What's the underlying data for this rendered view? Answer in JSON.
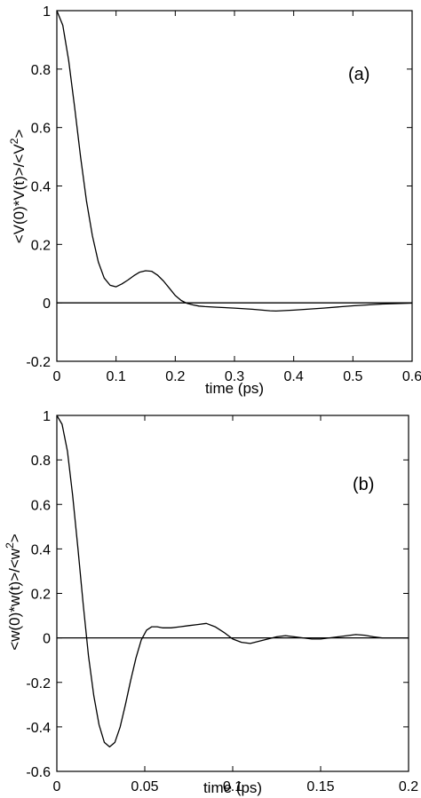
{
  "chart_data": [
    {
      "type": "line",
      "panel_tag": "(a)",
      "xlabel": "time (ps)",
      "ylabel": "<V(0)*V(t)>/<V",
      "ylabel_sup": "2",
      "ylabel_tail": ">",
      "xlim": [
        0,
        0.6
      ],
      "ylim": [
        -0.2,
        1
      ],
      "xticks": [
        0,
        0.1,
        0.2,
        0.3,
        0.4,
        0.5,
        0.6
      ],
      "xtick_labels": [
        "0",
        "0.1",
        "0.2",
        "0.3",
        "0.4",
        "0.5",
        "0.6"
      ],
      "yticks": [
        -0.2,
        0,
        0.2,
        0.4,
        0.6,
        0.8,
        1
      ],
      "ytick_labels": [
        "-0.2",
        "0",
        "0.2",
        "0.4",
        "0.6",
        "0.8",
        "1"
      ],
      "zero_line": 0,
      "series": [
        {
          "x": [
            0,
            0.01,
            0.02,
            0.03,
            0.04,
            0.05,
            0.06,
            0.07,
            0.08,
            0.09,
            0.1,
            0.11,
            0.12,
            0.13,
            0.14,
            0.15,
            0.16,
            0.17,
            0.18,
            0.19,
            0.2,
            0.21,
            0.22,
            0.23,
            0.24,
            0.25,
            0.27,
            0.3,
            0.33,
            0.36,
            0.37,
            0.4,
            0.45,
            0.5,
            0.55,
            0.6
          ],
          "y": [
            1,
            0.95,
            0.83,
            0.67,
            0.5,
            0.35,
            0.23,
            0.14,
            0.085,
            0.06,
            0.055,
            0.065,
            0.078,
            0.093,
            0.105,
            0.11,
            0.108,
            0.095,
            0.075,
            0.05,
            0.025,
            0.008,
            -0.002,
            -0.007,
            -0.011,
            -0.013,
            -0.015,
            -0.018,
            -0.022,
            -0.027,
            -0.028,
            -0.025,
            -0.018,
            -0.01,
            -0.004,
            -0.001
          ]
        }
      ]
    },
    {
      "type": "line",
      "panel_tag": "(b)",
      "xlabel": "time (ps)",
      "ylabel": "<w(0)*w(t)>/<w",
      "ylabel_sup": "2",
      "ylabel_tail": ">",
      "xlim": [
        0,
        0.2
      ],
      "ylim": [
        -0.6,
        1
      ],
      "xticks": [
        0,
        0.05,
        0.1,
        0.15,
        0.2
      ],
      "xtick_labels": [
        "0",
        "0.05",
        "0.1",
        "0.15",
        "0.2"
      ],
      "yticks": [
        -0.6,
        -0.4,
        -0.2,
        0,
        0.2,
        0.4,
        0.6,
        0.8,
        1
      ],
      "ytick_labels": [
        "-0.6",
        "-0.4",
        "-0.2",
        "0",
        "0.2",
        "0.4",
        "0.6",
        "0.8",
        "1"
      ],
      "zero_line": 0,
      "series": [
        {
          "x": [
            0,
            0.003,
            0.006,
            0.009,
            0.012,
            0.015,
            0.018,
            0.021,
            0.024,
            0.027,
            0.03,
            0.033,
            0.036,
            0.039,
            0.042,
            0.045,
            0.048,
            0.051,
            0.054,
            0.057,
            0.06,
            0.065,
            0.07,
            0.075,
            0.08,
            0.085,
            0.09,
            0.095,
            0.1,
            0.105,
            0.11,
            0.115,
            0.12,
            0.125,
            0.13,
            0.135,
            0.14,
            0.145,
            0.15,
            0.155,
            0.16,
            0.165,
            0.17,
            0.175,
            0.18,
            0.185,
            0.19,
            0.195,
            0.2
          ],
          "y": [
            1,
            0.96,
            0.84,
            0.64,
            0.4,
            0.15,
            -0.08,
            -0.26,
            -0.39,
            -0.47,
            -0.49,
            -0.47,
            -0.4,
            -0.3,
            -0.19,
            -0.09,
            -0.01,
            0.035,
            0.05,
            0.05,
            0.045,
            0.045,
            0.05,
            0.055,
            0.06,
            0.065,
            0.05,
            0.025,
            -0.005,
            -0.02,
            -0.025,
            -0.015,
            -0.005,
            0.005,
            0.01,
            0.005,
            0.0,
            -0.005,
            -0.005,
            0.0,
            0.005,
            0.01,
            0.015,
            0.012,
            0.005,
            0.0,
            0.0,
            0.0,
            0.0
          ]
        }
      ]
    }
  ]
}
